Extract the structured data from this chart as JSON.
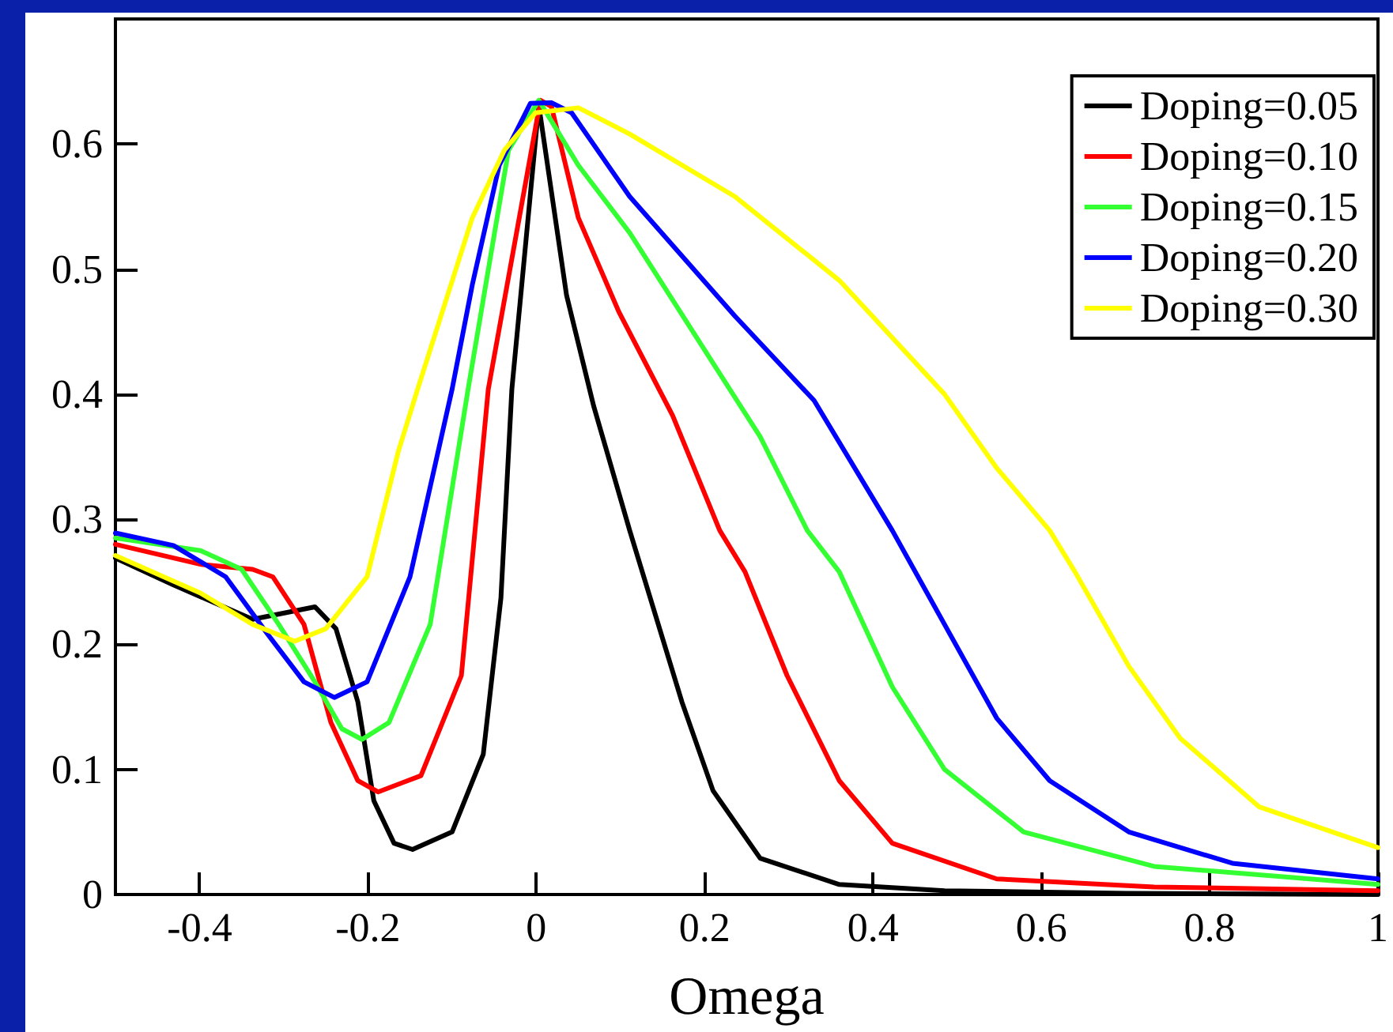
{
  "chart_data": {
    "type": "line",
    "xlabel": "Omega",
    "xlim": [
      -0.5,
      1
    ],
    "xticks": [
      -0.4,
      -0.2,
      0,
      0.2,
      0.4,
      0.6,
      0.8,
      1
    ],
    "ylim": [
      0,
      0.7
    ],
    "yticks": [
      0,
      0.1,
      0.2,
      0.3,
      0.4,
      0.5,
      0.6
    ],
    "grid": false,
    "legend": "top right",
    "marker": "none",
    "line_style": "solid",
    "series": [
      {
        "name": "Doping=0.05",
        "color": "#000000",
        "x": [
          -0.5,
          -0.431,
          -0.337,
          -0.263,
          -0.238,
          -0.212,
          -0.193,
          -0.169,
          -0.147,
          -0.1,
          -0.063,
          -0.042,
          -0.029,
          0.003,
          0.036,
          0.068,
          0.111,
          0.173,
          0.21,
          0.266,
          0.36,
          0.485,
          0.7,
          1.0
        ],
        "values": [
          0.269,
          0.2475,
          0.22,
          0.23,
          0.2125,
          0.154,
          0.075,
          0.041,
          0.036,
          0.05,
          0.112,
          0.237,
          0.404,
          0.631,
          0.479,
          0.391,
          0.291,
          0.154,
          0.083,
          0.029,
          0.008,
          0.003,
          0.001,
          0.0
        ]
      },
      {
        "name": "Doping=0.10",
        "color": "#ff0000",
        "x": [
          -0.5,
          -0.399,
          -0.337,
          -0.313,
          -0.276,
          -0.244,
          -0.212,
          -0.188,
          -0.137,
          -0.089,
          -0.057,
          0.005,
          0.018,
          0.05,
          0.098,
          0.162,
          0.218,
          0.248,
          0.298,
          0.36,
          0.423,
          0.547,
          0.734,
          1.0
        ],
        "values": [
          0.28,
          0.264,
          0.26,
          0.254,
          0.216,
          0.1375,
          0.091,
          0.082,
          0.095,
          0.175,
          0.404,
          0.635,
          0.63,
          0.541,
          0.466,
          0.383,
          0.291,
          0.258,
          0.175,
          0.091,
          0.041,
          0.0125,
          0.006,
          0.003
        ]
      },
      {
        "name": "Doping=0.15",
        "color": "#33ff33",
        "x": [
          -0.5,
          -0.399,
          -0.35,
          -0.306,
          -0.263,
          -0.231,
          -0.207,
          -0.175,
          -0.126,
          -0.081,
          -0.033,
          0.003,
          0.05,
          0.111,
          0.186,
          0.266,
          0.322,
          0.36,
          0.423,
          0.485,
          0.579,
          0.734,
          1.0
        ],
        "values": [
          0.285,
          0.275,
          0.26,
          0.216,
          0.17,
          0.1325,
          0.124,
          0.1375,
          0.216,
          0.404,
          0.595,
          0.635,
          0.583,
          0.529,
          0.45,
          0.366,
          0.291,
          0.258,
          0.166,
          0.1,
          0.05,
          0.0225,
          0.008
        ]
      },
      {
        "name": "Doping=0.20",
        "color": "#0000ff",
        "x": [
          -0.5,
          -0.431,
          -0.369,
          -0.319,
          -0.276,
          -0.24,
          -0.201,
          -0.15,
          -0.1,
          -0.076,
          -0.044,
          -0.007,
          0.018,
          0.042,
          0.111,
          0.236,
          0.33,
          0.423,
          0.485,
          0.547,
          0.61,
          0.704,
          0.827,
          1.0
        ],
        "values": [
          0.289,
          0.279,
          0.254,
          0.208,
          0.17,
          0.1575,
          0.17,
          0.254,
          0.404,
          0.4875,
          0.583,
          0.6325,
          0.633,
          0.625,
          0.558,
          0.4625,
          0.395,
          0.291,
          0.216,
          0.141,
          0.091,
          0.05,
          0.025,
          0.0125
        ]
      },
      {
        "name": "Doping=0.30",
        "color": "#ffff00",
        "x": [
          -0.5,
          -0.399,
          -0.337,
          -0.287,
          -0.25,
          -0.201,
          -0.164,
          -0.141,
          -0.076,
          -0.038,
          -0.001,
          0.05,
          0.111,
          0.236,
          0.36,
          0.485,
          0.547,
          0.61,
          0.64,
          0.704,
          0.765,
          0.859,
          1.0
        ],
        "values": [
          0.271,
          0.241,
          0.216,
          0.2025,
          0.2125,
          0.254,
          0.354,
          0.404,
          0.541,
          0.595,
          0.625,
          0.629,
          0.608,
          0.558,
          0.491,
          0.4,
          0.341,
          0.291,
          0.258,
          0.1825,
          0.125,
          0.07,
          0.0375
        ]
      }
    ]
  }
}
